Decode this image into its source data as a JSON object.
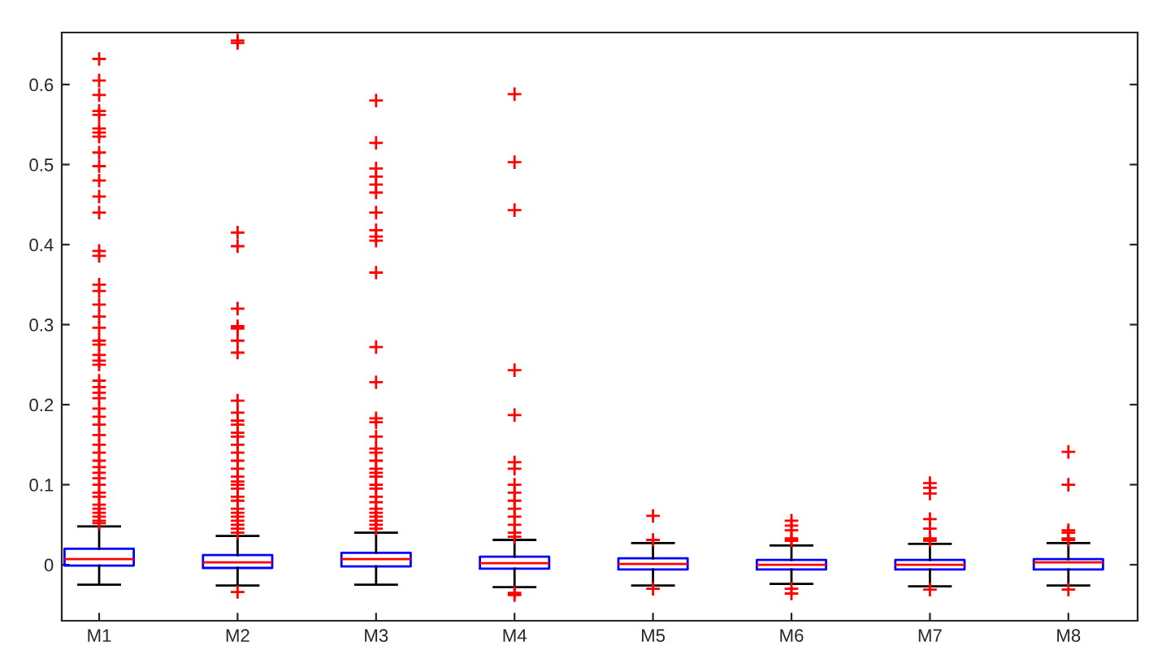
{
  "chart_data": {
    "type": "box",
    "categories": [
      "M1",
      "M2",
      "M3",
      "M4",
      "M5",
      "M6",
      "M7",
      "M8"
    ],
    "boxes": [
      {
        "low": -0.025,
        "q1": -0.001,
        "median": 0.007,
        "q3": 0.02,
        "high": 0.048,
        "outliers": [
          0.632,
          0.605,
          0.587,
          0.567,
          0.562,
          0.545,
          0.54,
          0.535,
          0.515,
          0.498,
          0.48,
          0.46,
          0.44,
          0.392,
          0.386,
          0.35,
          0.342,
          0.325,
          0.31,
          0.296,
          0.28,
          0.275,
          0.262,
          0.255,
          0.25,
          0.23,
          0.222,
          0.215,
          0.208,
          0.195,
          0.185,
          0.175,
          0.162,
          0.15,
          0.14,
          0.13,
          0.122,
          0.115,
          0.108,
          0.1,
          0.09,
          0.085,
          0.075,
          0.07,
          0.065,
          0.06,
          0.055,
          0.052
        ]
      },
      {
        "low": -0.026,
        "q1": -0.004,
        "median": 0.003,
        "q3": 0.012,
        "high": 0.036,
        "outliers": [
          0.655,
          0.652,
          0.415,
          0.398,
          0.32,
          0.298,
          0.295,
          0.28,
          0.265,
          0.205,
          0.19,
          0.18,
          0.175,
          0.165,
          0.16,
          0.15,
          0.14,
          0.13,
          0.12,
          0.11,
          0.104,
          0.1,
          0.095,
          0.085,
          0.08,
          0.07,
          0.065,
          0.06,
          0.055,
          0.05,
          0.045,
          0.04,
          -0.034
        ]
      },
      {
        "low": -0.025,
        "q1": -0.002,
        "median": 0.007,
        "q3": 0.015,
        "high": 0.04,
        "outliers": [
          0.58,
          0.527,
          0.495,
          0.485,
          0.475,
          0.465,
          0.44,
          0.418,
          0.41,
          0.405,
          0.365,
          0.272,
          0.228,
          0.183,
          0.178,
          0.16,
          0.145,
          0.14,
          0.13,
          0.12,
          0.115,
          0.11,
          0.1,
          0.095,
          0.085,
          0.078,
          0.07,
          0.065,
          0.06,
          0.055,
          0.05,
          0.045
        ]
      },
      {
        "low": -0.028,
        "q1": -0.005,
        "median": 0.002,
        "q3": 0.01,
        "high": 0.031,
        "outliers": [
          0.588,
          0.503,
          0.443,
          0.243,
          0.187,
          0.128,
          0.12,
          0.1,
          0.09,
          0.08,
          0.07,
          0.06,
          0.05,
          0.04,
          0.035,
          -0.035,
          -0.038
        ]
      },
      {
        "low": -0.026,
        "q1": -0.006,
        "median": 0.001,
        "q3": 0.008,
        "high": 0.027,
        "outliers": [
          0.061,
          0.031,
          -0.03
        ]
      },
      {
        "low": -0.024,
        "q1": -0.006,
        "median": 0.0,
        "q3": 0.006,
        "high": 0.024,
        "outliers": [
          0.055,
          0.049,
          0.043,
          0.033,
          0.03,
          -0.03,
          -0.036
        ]
      },
      {
        "low": -0.027,
        "q1": -0.006,
        "median": 0.0,
        "q3": 0.006,
        "high": 0.026,
        "outliers": [
          0.102,
          0.096,
          0.089,
          0.057,
          0.045,
          0.033,
          0.03,
          -0.031
        ]
      },
      {
        "low": -0.026,
        "q1": -0.006,
        "median": 0.003,
        "q3": 0.007,
        "high": 0.027,
        "outliers": [
          0.141,
          0.1,
          0.043,
          0.04,
          0.033,
          0.031,
          -0.031
        ]
      }
    ],
    "ylim": [
      -0.07,
      0.665
    ],
    "yticks": [
      0,
      0.1,
      0.2,
      0.3,
      0.4,
      0.5,
      0.6
    ],
    "grid": false
  }
}
